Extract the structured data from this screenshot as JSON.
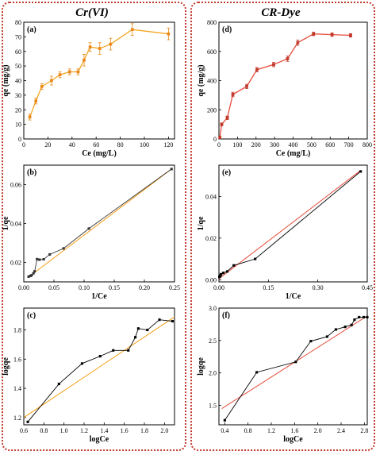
{
  "titles": {
    "left": "Cr(VI)",
    "right": "CR-Dye"
  },
  "chart_data": [
    {
      "id": "a",
      "label": "(a)",
      "type": "line",
      "xlabel": "Ce (mg/L)",
      "ylabel": "qe (mg/g)",
      "xlim": [
        0,
        125
      ],
      "ylim": [
        0,
        80
      ],
      "xticks": [
        0,
        20,
        40,
        60,
        80,
        100,
        120
      ],
      "yticks": [
        0,
        10,
        20,
        30,
        40,
        50,
        60,
        70,
        80
      ],
      "line_color": "#f5a623",
      "marker": "square",
      "marker_color": "#e8891a",
      "error_bars": true,
      "x": [
        5,
        10,
        15,
        23,
        30,
        38,
        45,
        50,
        55,
        63,
        72,
        90,
        120
      ],
      "y": [
        15,
        26,
        36,
        40,
        44,
        46,
        46,
        54,
        63,
        62,
        65,
        75,
        72
      ],
      "err": [
        2,
        2,
        2,
        3,
        2,
        2,
        2,
        4,
        3,
        4,
        4,
        4,
        4
      ]
    },
    {
      "id": "d",
      "label": "(d)",
      "type": "line",
      "xlabel": "Ce (mg/L)",
      "ylabel": "qe (mg/g)",
      "xlim": [
        0,
        800
      ],
      "ylim": [
        0,
        800
      ],
      "xticks": [
        0,
        100,
        200,
        300,
        400,
        500,
        600,
        700,
        800
      ],
      "yticks": [
        0,
        200,
        400,
        600,
        800
      ],
      "line_color": "#e74c3c",
      "marker": "square",
      "marker_color": "#c0392b",
      "error_bars": true,
      "x": [
        5,
        15,
        45,
        75,
        150,
        205,
        295,
        370,
        425,
        510,
        610,
        710
      ],
      "y": [
        10,
        100,
        145,
        305,
        360,
        475,
        510,
        550,
        660,
        720,
        715,
        710
      ],
      "err": [
        8,
        10,
        12,
        15,
        15,
        15,
        15,
        18,
        18,
        12,
        12,
        12
      ]
    },
    {
      "id": "b",
      "label": "(b)",
      "type": "line",
      "xlabel": "1/Ce",
      "ylabel": "1/qe",
      "xlim": [
        0,
        0.25
      ],
      "ylim": [
        0.01,
        0.07
      ],
      "xticks": [
        0.0,
        0.05,
        0.1,
        0.15,
        0.2,
        0.25
      ],
      "xtick_labels": [
        "0.00",
        "0.05",
        "0.10",
        "0.15",
        "0.20",
        "0.25"
      ],
      "yticks": [
        0.02,
        0.04,
        0.06
      ],
      "ytick_labels": [
        "0.02",
        "0.04",
        "0.06"
      ],
      "line_color": "#333333",
      "marker": "square",
      "marker_color": "#333333",
      "fit_color": "#f39c12",
      "fit": [
        [
          0.008,
          0.0125
        ],
        [
          0.245,
          0.068
        ]
      ],
      "x": [
        0.008,
        0.011,
        0.013,
        0.016,
        0.018,
        0.022,
        0.026,
        0.033,
        0.043,
        0.066,
        0.108,
        0.245
      ],
      "y": [
        0.0127,
        0.0131,
        0.0134,
        0.0144,
        0.0154,
        0.0217,
        0.0214,
        0.0216,
        0.0241,
        0.0272,
        0.0374,
        0.068
      ]
    },
    {
      "id": "e",
      "label": "(e)",
      "type": "line",
      "xlabel": "1/Ce",
      "ylabel": "1/qe",
      "xlim": [
        0,
        0.45
      ],
      "ylim": [
        -0.001,
        0.055
      ],
      "xticks": [
        0.0,
        0.15,
        0.3,
        0.45
      ],
      "xtick_labels": [
        "0.00",
        "0.15",
        "0.30",
        "0.45"
      ],
      "yticks": [
        0.0,
        0.02,
        0.04
      ],
      "ytick_labels": [
        "0.00",
        "0.02",
        "0.04"
      ],
      "line_color": "#000000",
      "marker": "square",
      "marker_color": "#000000",
      "fit_color": "#e74c3c",
      "fit": [
        [
          0.0,
          0.0005
        ],
        [
          0.43,
          0.0525
        ]
      ],
      "x": [
        0.0014,
        0.0016,
        0.0019,
        0.0024,
        0.0034,
        0.0049,
        0.0065,
        0.0135,
        0.025,
        0.045,
        0.11,
        0.43
      ],
      "y": [
        0.0014,
        0.0014,
        0.0014,
        0.0018,
        0.002,
        0.0021,
        0.0027,
        0.0033,
        0.004,
        0.0069,
        0.01,
        0.052
      ]
    },
    {
      "id": "c",
      "label": "(c)",
      "type": "line",
      "xlabel": "logCe",
      "ylabel": "logqe",
      "xlim": [
        0.6,
        2.1
      ],
      "ylim": [
        1.15,
        1.95
      ],
      "xticks": [
        0.6,
        0.8,
        1.0,
        1.2,
        1.4,
        1.6,
        1.8,
        2.0
      ],
      "xtick_labels": [
        "0.6",
        "0.8",
        "1.0",
        "1.2",
        "1.4",
        "1.6",
        "1.8",
        "2.0"
      ],
      "yticks": [
        1.2,
        1.4,
        1.6,
        1.8
      ],
      "ytick_labels": [
        "1.2",
        "1.4",
        "1.6",
        "1.8"
      ],
      "line_color": "#000000",
      "marker": "square",
      "marker_color": "#000000",
      "fit_color": "#f39c12",
      "fit": [
        [
          0.6,
          1.2
        ],
        [
          2.1,
          1.89
        ]
      ],
      "x": [
        0.64,
        0.95,
        1.18,
        1.36,
        1.49,
        1.64,
        1.71,
        1.74,
        1.83,
        1.95,
        2.08
      ],
      "y": [
        1.17,
        1.43,
        1.57,
        1.62,
        1.66,
        1.66,
        1.75,
        1.81,
        1.8,
        1.87,
        1.86
      ]
    },
    {
      "id": "f",
      "label": "(f)",
      "type": "line",
      "xlabel": "logCe",
      "ylabel": "logqe",
      "xlim": [
        0.3,
        2.85
      ],
      "ylim": [
        1.2,
        3.0
      ],
      "xticks": [
        0.4,
        0.8,
        1.2,
        1.6,
        2.0,
        2.4,
        2.8
      ],
      "xtick_labels": [
        "0.4",
        "0.8",
        "1.2",
        "1.6",
        "2.0",
        "2.4",
        "2.8"
      ],
      "yticks": [
        1.5,
        2.0,
        2.5,
        3.0
      ],
      "ytick_labels": [
        "1.5",
        "2.0",
        "2.5",
        "3.0"
      ],
      "line_color": "#000000",
      "marker": "square",
      "marker_color": "#000000",
      "fit_color": "#e74c3c",
      "fit": [
        [
          0.35,
          1.45
        ],
        [
          2.85,
          2.88
        ]
      ],
      "x": [
        0.4,
        0.95,
        1.62,
        1.88,
        2.16,
        2.31,
        2.47,
        2.58,
        2.63,
        2.71,
        2.79,
        2.85
      ],
      "y": [
        1.27,
        2.01,
        2.17,
        2.49,
        2.56,
        2.67,
        2.71,
        2.74,
        2.82,
        2.86,
        2.86,
        2.86
      ]
    }
  ]
}
